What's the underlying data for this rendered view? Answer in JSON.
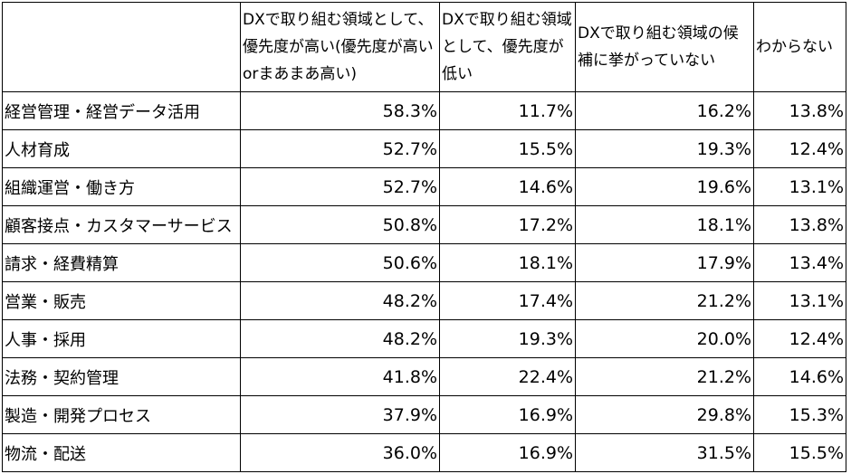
{
  "chart_data": {
    "type": "table",
    "columns": [
      "",
      "DXで取り組む領域として、優先度が高い(優先度が高いorまあまあ高い)",
      "DXで取り組む領域として、優先度が低い",
      "DXで取り組む領域の候補に挙がっていない",
      "わからない"
    ],
    "rows": [
      {
        "label": "経営管理・経営データ活用",
        "values": [
          "58.3%",
          "11.7%",
          "16.2%",
          "13.8%"
        ]
      },
      {
        "label": "人材育成",
        "values": [
          "52.7%",
          "15.5%",
          "19.3%",
          "12.4%"
        ]
      },
      {
        "label": "組織運営・働き方",
        "values": [
          "52.7%",
          "14.6%",
          "19.6%",
          "13.1%"
        ]
      },
      {
        "label": "顧客接点・カスタマーサービス",
        "values": [
          "50.8%",
          "17.2%",
          "18.1%",
          "13.8%"
        ]
      },
      {
        "label": "請求・経費精算",
        "values": [
          "50.6%",
          "18.1%",
          "17.9%",
          "13.4%"
        ]
      },
      {
        "label": "営業・販売",
        "values": [
          "48.2%",
          "17.4%",
          "21.2%",
          "13.1%"
        ]
      },
      {
        "label": "人事・採用",
        "values": [
          "48.2%",
          "19.3%",
          "20.0%",
          "12.4%"
        ]
      },
      {
        "label": "法務・契約管理",
        "values": [
          "41.8%",
          "22.4%",
          "21.2%",
          "14.6%"
        ]
      },
      {
        "label": "製造・開発プロセス",
        "values": [
          "37.9%",
          "16.9%",
          "29.8%",
          "15.3%"
        ]
      },
      {
        "label": "物流・配送",
        "values": [
          "36.0%",
          "16.9%",
          "31.5%",
          "15.5%"
        ]
      }
    ]
  }
}
